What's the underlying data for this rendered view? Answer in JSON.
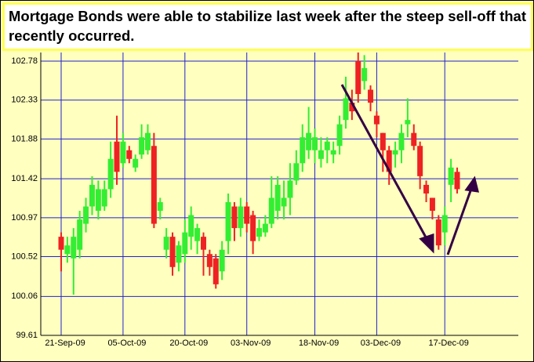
{
  "chart_data": {
    "type": "candlestick",
    "title": "Mortgage Bonds were able to stabilize last week after the steep sell-off that recently occurred.",
    "categories": [
      "21-Sep-09",
      null,
      null,
      null,
      null,
      null,
      null,
      null,
      null,
      null,
      "05-Oct-09",
      null,
      null,
      null,
      null,
      null,
      null,
      null,
      null,
      null,
      "20-Oct-09",
      null,
      null,
      null,
      null,
      null,
      null,
      null,
      null,
      null,
      "03-Nov-09",
      null,
      null,
      null,
      null,
      null,
      null,
      null,
      null,
      null,
      null,
      "18-Nov-09",
      null,
      null,
      null,
      null,
      null,
      null,
      null,
      null,
      null,
      "03-Dec-09",
      null,
      null,
      null,
      null,
      null,
      null,
      null,
      null,
      null,
      null,
      "17-Dec-09",
      null,
      null
    ],
    "open": [
      100.75,
      100.55,
      100.5,
      100.6,
      100.9,
      101.1,
      101.05,
      101.1,
      101.3,
      101.85,
      101.6,
      101.75,
      101.55,
      101.7,
      101.75,
      101.8,
      101.05,
      100.6,
      100.75,
      100.45,
      100.55,
      100.75,
      100.7,
      100.75,
      100.55,
      100.5,
      100.35,
      100.7,
      101.1,
      100.85,
      101.1,
      101.0,
      100.75,
      100.8,
      100.9,
      101.05,
      101.1,
      101.2,
      101.4,
      101.6,
      101.75,
      101.75,
      101.65,
      101.75,
      101.7,
      101.8,
      102.1,
      102.3,
      102.78,
      102.55,
      102.45,
      102.15,
      101.95,
      101.75,
      101.7,
      101.75,
      102.05,
      101.95,
      101.8,
      101.35,
      101.2,
      100.95,
      100.8,
      101.35,
      101.5
    ],
    "high": [
      100.8,
      100.75,
      100.85,
      101.05,
      101.2,
      101.45,
      101.4,
      101.4,
      101.85,
      102.15,
      101.95,
      101.8,
      101.7,
      102.05,
      102.05,
      101.95,
      101.2,
      100.85,
      100.8,
      100.7,
      100.95,
      101.1,
      100.9,
      100.8,
      100.6,
      100.55,
      100.7,
      101.25,
      101.15,
      101.2,
      101.15,
      101.05,
      100.95,
      101.0,
      101.45,
      101.45,
      101.4,
      101.6,
      101.75,
      102.05,
      102.25,
      102.0,
      101.9,
      101.9,
      101.85,
      102.15,
      102.6,
      102.45,
      102.88,
      102.85,
      102.5,
      102.2,
      101.95,
      101.8,
      101.85,
      102.05,
      102.35,
      102.05,
      101.85,
      101.4,
      101.2,
      101.0,
      101.1,
      101.65,
      101.55
    ],
    "low": [
      100.35,
      100.45,
      100.08,
      100.5,
      100.8,
      101.0,
      100.95,
      101.05,
      101.2,
      101.35,
      101.55,
      101.6,
      101.5,
      101.65,
      101.7,
      100.85,
      100.95,
      100.5,
      100.3,
      100.35,
      100.45,
      100.6,
      100.55,
      100.3,
      100.3,
      100.15,
      100.25,
      100.55,
      100.7,
      100.75,
      100.8,
      100.55,
      100.7,
      100.75,
      100.85,
      100.95,
      100.95,
      101.0,
      101.35,
      101.5,
      101.65,
      101.6,
      101.55,
      101.6,
      101.6,
      101.7,
      102.0,
      102.1,
      102.3,
      102.45,
      102.2,
      101.9,
      101.5,
      101.35,
      101.55,
      101.6,
      101.9,
      101.75,
      101.3,
      101.15,
      100.95,
      100.6,
      100.65,
      101.15,
      101.25
    ],
    "close": [
      100.6,
      100.65,
      100.75,
      100.95,
      101.1,
      101.35,
      101.3,
      101.3,
      101.65,
      101.5,
      101.85,
      101.65,
      101.65,
      101.9,
      101.95,
      100.9,
      101.15,
      100.75,
      100.4,
      100.65,
      100.8,
      101.0,
      100.85,
      100.6,
      100.4,
      100.2,
      100.6,
      101.15,
      100.85,
      101.1,
      100.9,
      100.7,
      100.85,
      100.9,
      101.2,
      101.35,
      101.2,
      101.4,
      101.6,
      101.9,
      101.95,
      101.9,
      101.75,
      101.85,
      101.75,
      102.05,
      102.35,
      102.2,
      102.4,
      102.7,
      102.3,
      102.05,
      101.75,
      101.5,
      101.75,
      101.95,
      102.1,
      101.8,
      101.45,
      101.25,
      101.05,
      100.65,
      101.0,
      101.55,
      101.3
    ],
    "up_color": "#33ee33",
    "down_color": "#ee2222",
    "ylim": [
      99.61,
      102.88
    ],
    "yticks": [
      99.61,
      100.06,
      100.52,
      100.97,
      101.42,
      101.88,
      102.33,
      102.78
    ],
    "grid": true
  }
}
